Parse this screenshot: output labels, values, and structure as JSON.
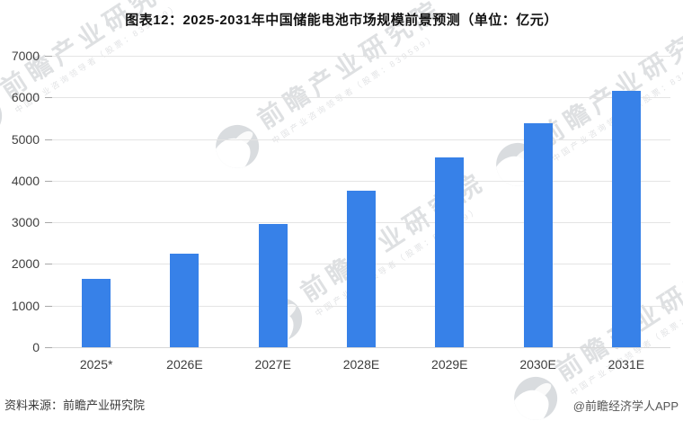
{
  "chart_data": {
    "type": "bar",
    "title": "图表12：2025-2031年中国储能电池市场规模前景预测（单位：亿元）",
    "categories": [
      "2025*",
      "2026E",
      "2027E",
      "2028E",
      "2029E",
      "2030E",
      "2031E"
    ],
    "values": [
      1650,
      2250,
      2960,
      3750,
      4560,
      5390,
      6160
    ],
    "xlabel": "",
    "ylabel": "",
    "ylim": [
      0,
      7000
    ],
    "ytick_step": 1000,
    "grid": true,
    "legend": "none",
    "bar_color": "#3781e8",
    "gridline_color": "#e4e4e4"
  },
  "footer": {
    "source": "资料来源：前瞻产业研究院",
    "brand": "@前瞻经济学人APP"
  },
  "watermark": {
    "line1": "前瞻产业研究院",
    "line2": "中国产业咨询领导者（股票：839599）"
  }
}
